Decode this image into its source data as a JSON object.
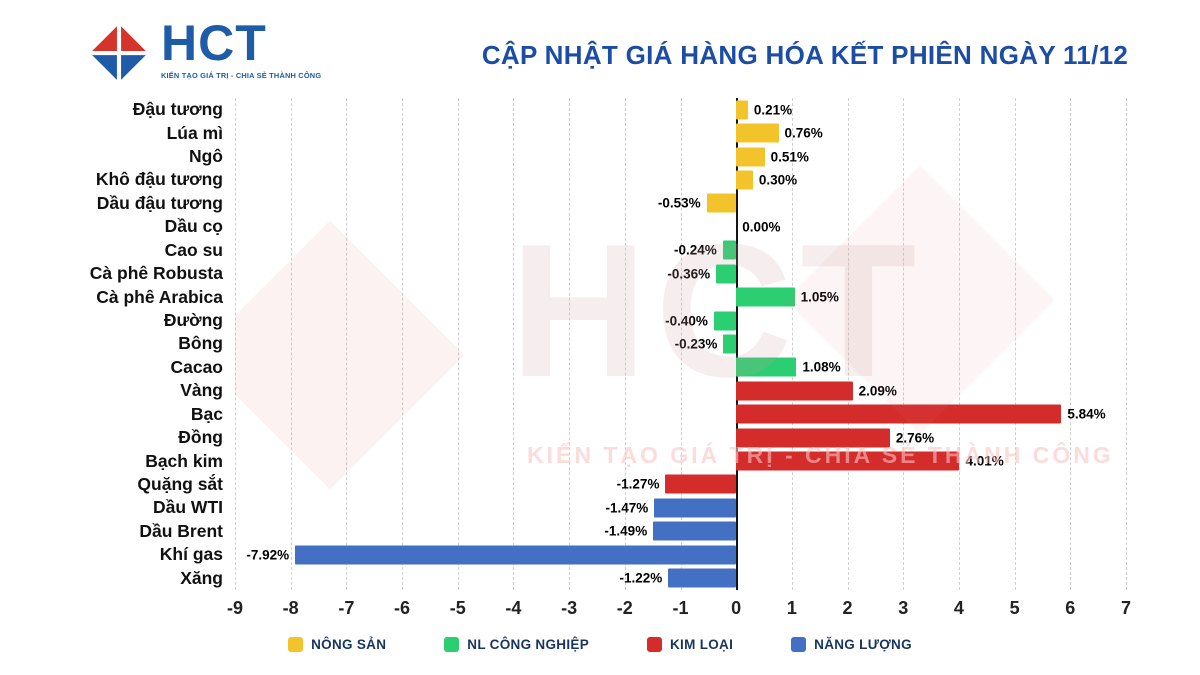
{
  "header": {
    "logo": {
      "text": "HCT",
      "tagline": "KIẾN TẠO GIÁ TRỊ - CHIA SẺ THÀNH CÔNG"
    },
    "title": "CẬP NHẬT GIÁ HÀNG HÓA KẾT PHIÊN NGÀY 11/12",
    "title_color": "#1B4CA6"
  },
  "watermark": {
    "text": "HCT",
    "tagline": "KIẾN TẠO GIÁ TRỊ - CHIA SẺ THÀNH CÔNG"
  },
  "chart_data": {
    "type": "bar",
    "orientation": "horizontal",
    "xlim": [
      -9,
      7
    ],
    "x_ticks": [
      -9,
      -8,
      -7,
      -6,
      -5,
      -4,
      -3,
      -2,
      -1,
      0,
      1,
      2,
      3,
      4,
      5,
      6,
      7
    ],
    "grid": "dashed-vertical",
    "legend_position": "bottom",
    "value_unit": "%",
    "groups": [
      {
        "id": "nong-san",
        "label": "NÔNG SẢN",
        "color": "#F3C32C"
      },
      {
        "id": "nl-cong-nghiep",
        "label": "NL CÔNG NGHIỆP",
        "color": "#2BCE71"
      },
      {
        "id": "kim-loai",
        "label": "KIM LOẠI",
        "color": "#D42B2B"
      },
      {
        "id": "nang-luong",
        "label": "NĂNG LƯỢNG",
        "color": "#4470C4"
      }
    ],
    "bars": [
      {
        "category": "Đậu tương",
        "value": 0.21,
        "label": "0.21%",
        "group": "nong-san"
      },
      {
        "category": "Lúa mì",
        "value": 0.76,
        "label": "0.76%",
        "group": "nong-san"
      },
      {
        "category": "Ngô",
        "value": 0.51,
        "label": "0.51%",
        "group": "nong-san"
      },
      {
        "category": "Khô đậu tương",
        "value": 0.3,
        "label": "0.30%",
        "group": "nong-san"
      },
      {
        "category": "Dầu đậu tương",
        "value": -0.53,
        "label": "-0.53%",
        "group": "nong-san"
      },
      {
        "category": "Dầu cọ",
        "value": 0.0,
        "label": "0.00%",
        "group": "nong-san"
      },
      {
        "category": "Cao su",
        "value": -0.24,
        "label": "-0.24%",
        "group": "nl-cong-nghiep"
      },
      {
        "category": "Cà phê Robusta",
        "value": -0.36,
        "label": "-0.36%",
        "group": "nl-cong-nghiep"
      },
      {
        "category": "Cà phê Arabica",
        "value": 1.05,
        "label": "1.05%",
        "group": "nl-cong-nghiep"
      },
      {
        "category": "Đường",
        "value": -0.4,
        "label": "-0.40%",
        "group": "nl-cong-nghiep"
      },
      {
        "category": "Bông",
        "value": -0.23,
        "label": "-0.23%",
        "group": "nl-cong-nghiep"
      },
      {
        "category": "Cacao",
        "value": 1.08,
        "label": "1.08%",
        "group": "nl-cong-nghiep"
      },
      {
        "category": "Vàng",
        "value": 2.09,
        "label": "2.09%",
        "group": "kim-loai"
      },
      {
        "category": "Bạc",
        "value": 5.84,
        "label": "5.84%",
        "group": "kim-loai"
      },
      {
        "category": "Đồng",
        "value": 2.76,
        "label": "2.76%",
        "group": "kim-loai"
      },
      {
        "category": "Bạch kim",
        "value": 4.01,
        "label": "4.01%",
        "group": "kim-loai"
      },
      {
        "category": "Quặng sắt",
        "value": -1.27,
        "label": "-1.27%",
        "group": "kim-loai"
      },
      {
        "category": "Dầu WTI",
        "value": -1.47,
        "label": "-1.47%",
        "group": "nang-luong"
      },
      {
        "category": "Dầu Brent",
        "value": -1.49,
        "label": "-1.49%",
        "group": "nang-luong"
      },
      {
        "category": "Khí gas",
        "value": -7.92,
        "label": "-7.92%",
        "group": "nang-luong"
      },
      {
        "category": "Xăng",
        "value": -1.22,
        "label": "-1.22%",
        "group": "nang-luong"
      }
    ]
  }
}
